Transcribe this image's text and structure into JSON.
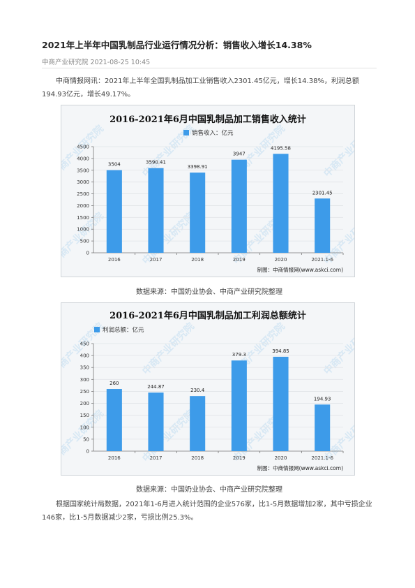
{
  "article": {
    "title": "2021年上半年中国乳制品行业运行情况分析：销售收入增长14.38%",
    "source": "中商产业研究院",
    "date": "2021-08-25 10:45",
    "para1": "中商情报网讯：2021年上半年全国乳制品加工业销售收入2301.45亿元，增长14.38%，利润总额194.93亿元，增长49.17%。",
    "caption1": "数据来源：中国奶业协会、中商产业研究院整理",
    "caption2": "数据来源：中国奶业协会、中商产业研究院整理",
    "para2": "根据国家统计局数据，2021年1-6月进入统计范围的企业576家，比1-5月数据增加2家，其中亏损企业146家，比1-5月数据减少2家，亏损比例25.3%。",
    "watermark": "中商产业研究院",
    "bar_color": "#3d9be9"
  },
  "chart_data": [
    {
      "type": "bar",
      "title": "2016-2021年6月中国乳制品加工销售收入统计",
      "legend": "销售收入：亿元",
      "categories": [
        "2016",
        "2017",
        "2018",
        "2019",
        "2020",
        "2021.1-6"
      ],
      "values": [
        3504,
        3590.41,
        3398.91,
        3947,
        4195.58,
        2301.45
      ],
      "labels": [
        "3504",
        "3590.41",
        "3398.91",
        "3947",
        "4195.58",
        "2301.45"
      ],
      "ylim": [
        0,
        4500
      ],
      "yticks": [
        "0",
        "500",
        "1000",
        "1500",
        "2000",
        "2500",
        "3000",
        "3500",
        "4000",
        "4500"
      ],
      "credit": "制图：中商情报网(www.askci.com)",
      "grid": true,
      "legend_position": "top-center"
    },
    {
      "type": "bar",
      "title": "2016-2021年6月中国乳制品加工利润总额统计",
      "legend": "利润总额：亿元",
      "categories": [
        "2016",
        "2017",
        "2018",
        "2019",
        "2020",
        "2021.1-6"
      ],
      "values": [
        260,
        244.87,
        230.4,
        379.3,
        394.85,
        194.93
      ],
      "labels": [
        "260",
        "244.87",
        "230.4",
        "379.3",
        "394.85",
        "194.93"
      ],
      "ylim": [
        0,
        450
      ],
      "yticks": [
        "0",
        "50",
        "100",
        "150",
        "200",
        "250",
        "300",
        "350",
        "400",
        "450"
      ],
      "credit": "制图：中商情报网(www.askci.com)",
      "grid": true,
      "legend_position": "top-left"
    }
  ]
}
